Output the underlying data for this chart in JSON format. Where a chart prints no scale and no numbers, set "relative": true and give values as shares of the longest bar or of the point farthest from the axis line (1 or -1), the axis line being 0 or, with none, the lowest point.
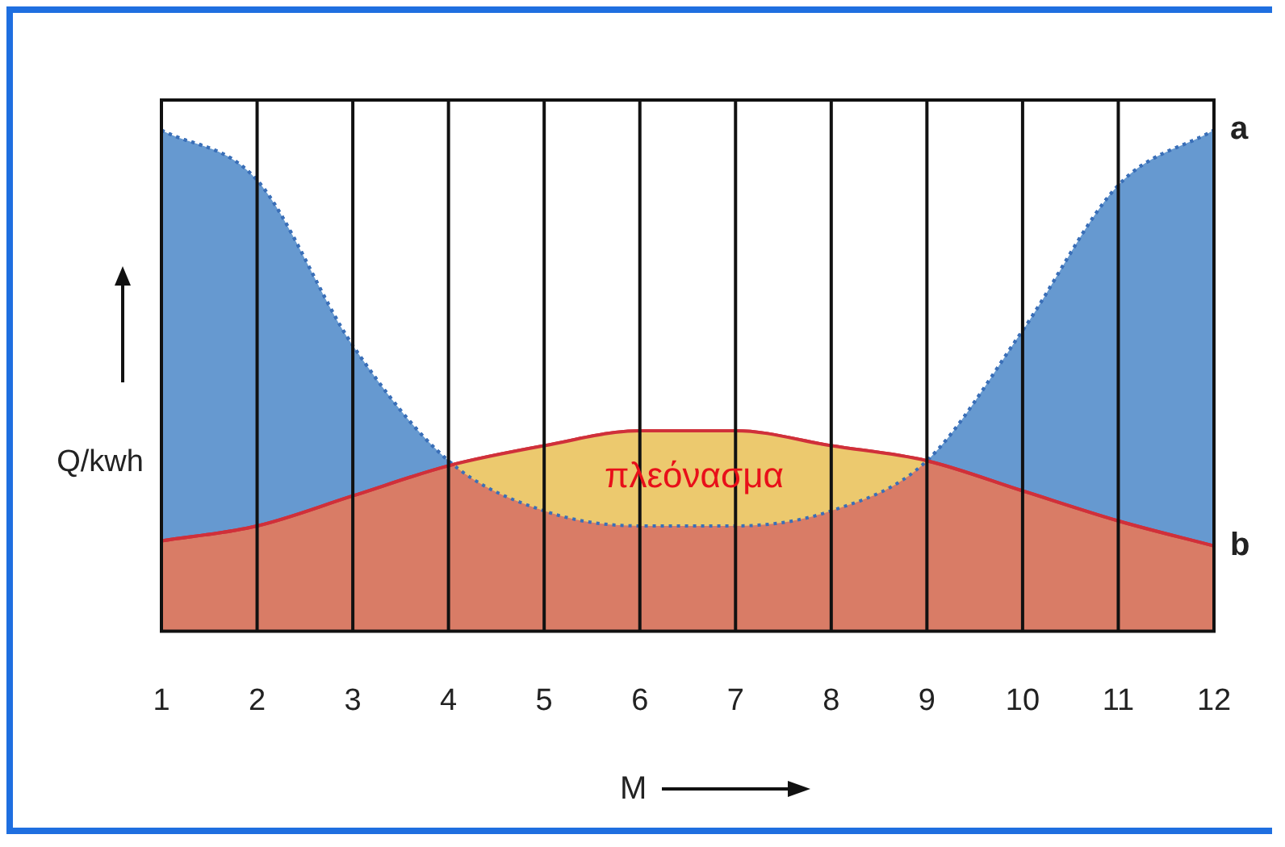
{
  "chart_data": {
    "type": "area",
    "relative": true,
    "x": [
      1,
      2,
      3,
      4,
      5,
      6,
      7,
      8,
      9,
      10,
      11,
      12
    ],
    "xlim": [
      1,
      12
    ],
    "xticks": [
      1,
      2,
      3,
      4,
      5,
      6,
      7,
      8,
      9,
      10,
      11,
      12
    ],
    "xlabel": "M",
    "ylabel": "Q/kwh",
    "grid": "x",
    "legend": false,
    "marker": "none",
    "series": [
      {
        "name": "a",
        "color": "#6699d0",
        "line_style": "dotted",
        "values": [
          1,
          0.9,
          0.57,
          0.34,
          0.24,
          0.21,
          0.21,
          0.24,
          0.34,
          0.6,
          0.89,
          1
        ]
      },
      {
        "name": "b",
        "color": "#d97c66",
        "values": [
          0.18,
          0.21,
          0.27,
          0.33,
          0.37,
          0.4,
          0.4,
          0.37,
          0.34,
          0.28,
          0.22,
          0.17
        ]
      }
    ],
    "annotations": [
      "πλεόνασμα"
    ]
  }
}
